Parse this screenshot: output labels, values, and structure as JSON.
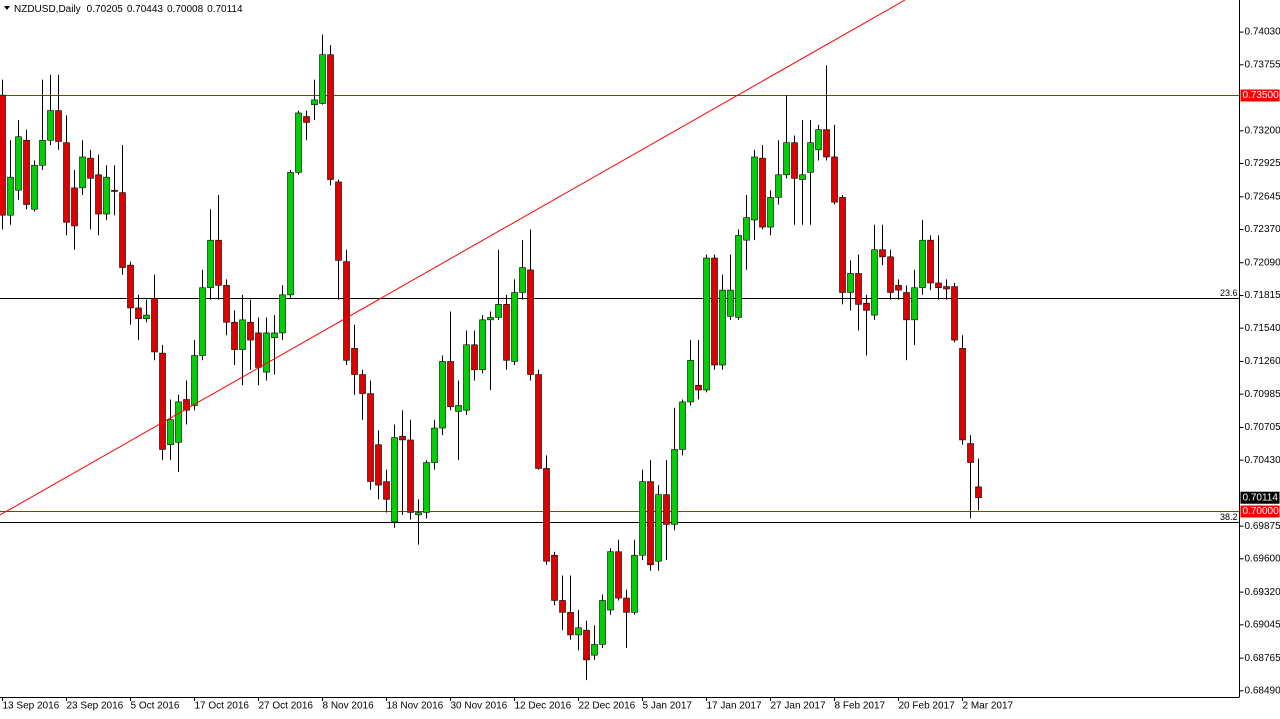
{
  "chart_data": {
    "type": "candlestick",
    "title": "NZDUSD,Daily",
    "up_color": "#00d000",
    "down_color": "#e00000",
    "categories": [
      "13 Sep 2016",
      null,
      null,
      null,
      null,
      null,
      null,
      null,
      "23 Sep 2016",
      null,
      null,
      null,
      null,
      null,
      null,
      null,
      "5 Oct 2016",
      null,
      null,
      null,
      null,
      null,
      null,
      null,
      "17 Oct 2016",
      null,
      null,
      null,
      null,
      null,
      null,
      null,
      "27 Oct 2016",
      null,
      null,
      null,
      null,
      null,
      null,
      null,
      "8 Nov 2016",
      null,
      null,
      null,
      null,
      null,
      null,
      null,
      "18 Nov 2016",
      null,
      null,
      null,
      null,
      null,
      null,
      null,
      "30 Nov 2016",
      null,
      null,
      null,
      null,
      null,
      null,
      null,
      "12 Dec 2016",
      null,
      null,
      null,
      null,
      null,
      null,
      null,
      "22 Dec 2016",
      null,
      null,
      null,
      null,
      null,
      null,
      null,
      "5 Jan 2017",
      null,
      null,
      null,
      null,
      null,
      null,
      null,
      "17 Jan 2017",
      null,
      null,
      null,
      null,
      null,
      null,
      null,
      "27 Jan 2017",
      null,
      null,
      null,
      null,
      null,
      null,
      null,
      "8 Feb 2017",
      null,
      null,
      null,
      null,
      null,
      null,
      null,
      "20 Feb 2017",
      null,
      null,
      null,
      null,
      null,
      null,
      null,
      "2 Mar 2017",
      null,
      null
    ],
    "open": [
      0.735,
      0.7249,
      0.727,
      0.7312,
      0.7254,
      0.7291,
      0.7312,
      0.7337,
      0.731,
      0.7272,
      0.7272,
      0.7297,
      0.7283,
      0.725,
      0.727,
      0.7268,
      0.7207,
      0.7171,
      0.7162,
      0.7179,
      0.7133,
      0.7056,
      0.7058,
      0.7094,
      0.7089,
      0.7131,
      0.7188,
      0.7228,
      0.719,
      0.7159,
      0.7136,
      0.7159,
      0.715,
      0.7117,
      0.7146,
      0.715,
      0.7182,
      0.7285,
      0.7332,
      0.7342,
      0.7343,
      0.7384,
      0.7277,
      0.721,
      0.7137,
      0.7115,
      0.7099,
      0.7056,
      0.7025,
      0.6991,
      0.7063,
      0.706,
      0.6997,
      0.6999,
      0.7041,
      0.707,
      0.7126,
      0.7084,
      0.7085,
      0.714,
      0.7119,
      0.7161,
      0.7163,
      0.7174,
      0.7126,
      0.7184,
      0.7203,
      0.7115,
      0.7036,
      0.6963,
      0.6925,
      0.6915,
      0.6896,
      0.69,
      0.6879,
      0.6888,
      0.6917,
      0.6966,
      0.6927,
      0.6915,
      0.6963,
      0.7025,
      0.6958,
      0.7014,
      0.6989,
      0.7052,
      0.7092,
      0.7106,
      0.7102,
      0.7213,
      0.7123,
      0.7164,
      0.7163,
      0.7228,
      0.7245,
      0.7297,
      0.7239,
      0.7264,
      0.7283,
      0.731,
      0.7279,
      0.7285,
      0.7304,
      0.7321,
      0.7298,
      0.7264,
      0.7184,
      0.72,
      0.7175,
      0.7165,
      0.722,
      0.7214,
      0.719,
      0.7184,
      0.7161,
      0.7188,
      0.7228,
      0.7192,
      0.7189,
      0.7189,
      0.7137,
      0.7057,
      0.70205
    ],
    "high": [
      0.7363,
      0.7312,
      0.7329,
      0.7321,
      0.7295,
      0.7363,
      0.7367,
      0.7367,
      0.7333,
      0.7287,
      0.7312,
      0.7304,
      0.73,
      0.7291,
      0.7291,
      0.7308,
      0.721,
      0.7182,
      0.7178,
      0.7199,
      0.714,
      0.7094,
      0.7098,
      0.711,
      0.7144,
      0.7203,
      0.7254,
      0.7266,
      0.7195,
      0.7169,
      0.7182,
      0.7178,
      0.7163,
      0.7163,
      0.7165,
      0.719,
      0.7287,
      0.7337,
      0.7337,
      0.7363,
      0.7401,
      0.7392,
      0.7279,
      0.722,
      0.7157,
      0.7119,
      0.711,
      0.7068,
      0.7035,
      0.7073,
      0.7085,
      0.7077,
      0.701,
      0.7043,
      0.7077,
      0.7131,
      0.7168,
      0.711,
      0.7152,
      0.7152,
      0.7165,
      0.7168,
      0.722,
      0.7182,
      0.7195,
      0.7228,
      0.7237,
      0.7119,
      0.7047,
      0.6966,
      0.6946,
      0.6946,
      0.6917,
      0.6908,
      0.6904,
      0.693,
      0.6969,
      0.6976,
      0.6934,
      0.6976,
      0.7035,
      0.7043,
      0.7022,
      0.7043,
      0.7087,
      0.7094,
      0.7144,
      0.7144,
      0.7216,
      0.7216,
      0.7199,
      0.7216,
      0.7237,
      0.7266,
      0.7304,
      0.7308,
      0.727,
      0.7312,
      0.735,
      0.7316,
      0.7329,
      0.7329,
      0.7325,
      0.7375,
      0.7325,
      0.7266,
      0.7211,
      0.7216,
      0.7182,
      0.7241,
      0.7241,
      0.722,
      0.7195,
      0.719,
      0.7203,
      0.7245,
      0.7232,
      0.7232,
      0.7195,
      0.7192,
      0.7148,
      0.7064,
      0.70443
    ],
    "low": [
      0.7237,
      0.7241,
      0.7262,
      0.7254,
      0.7252,
      0.7287,
      0.7308,
      0.7304,
      0.7232,
      0.722,
      0.7266,
      0.7237,
      0.7232,
      0.7245,
      0.7249,
      0.7199,
      0.7157,
      0.7144,
      0.7159,
      0.7127,
      0.7043,
      0.7043,
      0.7033,
      0.7073,
      0.7085,
      0.7127,
      0.7178,
      0.7178,
      0.7148,
      0.7123,
      0.7106,
      0.7119,
      0.7106,
      0.711,
      0.7115,
      0.7144,
      0.7179,
      0.7283,
      0.7312,
      0.7329,
      0.7342,
      0.7274,
      0.7178,
      0.7123,
      0.7098,
      0.7077,
      0.7018,
      0.701,
      0.6999,
      0.6986,
      0.6997,
      0.6993,
      0.6972,
      0.6994,
      0.7035,
      0.7064,
      0.7085,
      0.7043,
      0.7081,
      0.711,
      0.7116,
      0.7102,
      0.7161,
      0.7119,
      0.7123,
      0.7178,
      0.711,
      0.7035,
      0.6955,
      0.6921,
      0.69,
      0.6892,
      0.6883,
      0.6858,
      0.6875,
      0.6885,
      0.6913,
      0.6925,
      0.6885,
      0.6913,
      0.6959,
      0.695,
      0.695,
      0.6959,
      0.6984,
      0.7047,
      0.7089,
      0.7094,
      0.71,
      0.7119,
      0.7119,
      0.7161,
      0.7161,
      0.7203,
      0.7228,
      0.7237,
      0.7232,
      0.7258,
      0.728,
      0.7241,
      0.7241,
      0.7241,
      0.7295,
      0.7295,
      0.7258,
      0.7174,
      0.7169,
      0.7152,
      0.7131,
      0.7161,
      0.7207,
      0.7178,
      0.7178,
      0.7127,
      0.714,
      0.7182,
      0.7186,
      0.7178,
      0.7178,
      0.7142,
      0.7056,
      0.6994,
      0.70008
    ],
    "close": [
      0.7249,
      0.7281,
      0.7315,
      0.7258,
      0.7291,
      0.7312,
      0.7337,
      0.7311,
      0.7243,
      0.724,
      0.7298,
      0.728,
      0.725,
      0.7281,
      0.7269,
      0.7205,
      0.7171,
      0.7162,
      0.7165,
      0.7134,
      0.7052,
      0.7077,
      0.7092,
      0.7085,
      0.7131,
      0.7188,
      0.7228,
      0.719,
      0.7159,
      0.7136,
      0.7161,
      0.7144,
      0.7121,
      0.715,
      0.715,
      0.7182,
      0.7285,
      0.7335,
      0.7327,
      0.7346,
      0.7384,
      0.7279,
      0.7211,
      0.7127,
      0.7115,
      0.7099,
      0.7025,
      0.7022,
      0.701,
      0.7062,
      0.706,
      0.6999,
      0.6999,
      0.7041,
      0.707,
      0.7126,
      0.7088,
      0.7089,
      0.714,
      0.7119,
      0.7161,
      0.7163,
      0.7174,
      0.7127,
      0.7184,
      0.7205,
      0.7115,
      0.7036,
      0.6958,
      0.6925,
      0.6915,
      0.6896,
      0.6902,
      0.6875,
      0.6888,
      0.6925,
      0.6966,
      0.6927,
      0.6915,
      0.6963,
      0.7025,
      0.6955,
      0.7014,
      0.6989,
      0.7052,
      0.7092,
      0.7127,
      0.7102,
      0.7213,
      0.7123,
      0.7186,
      0.7186,
      0.7232,
      0.7247,
      0.7298,
      0.7239,
      0.7264,
      0.7283,
      0.731,
      0.728,
      0.7283,
      0.731,
      0.7321,
      0.7298,
      0.726,
      0.7184,
      0.72,
      0.7174,
      0.7169,
      0.722,
      0.7214,
      0.7184,
      0.7186,
      0.7161,
      0.7188,
      0.7228,
      0.7192,
      0.7188,
      0.7187,
      0.7144,
      0.706,
      0.7041,
      0.70114
    ],
    "ylim": [
      0.68438,
      0.743
    ],
    "yticks": [
      {
        "value": 0.7403,
        "label": "0.74030"
      },
      {
        "value": 0.73755,
        "label": "0.73755"
      },
      {
        "value": 0.732,
        "label": "0.73200"
      },
      {
        "value": 0.72925,
        "label": "0.72925"
      },
      {
        "value": 0.72645,
        "label": "0.72645"
      },
      {
        "value": 0.7237,
        "label": "0.72370"
      },
      {
        "value": 0.7209,
        "label": "0.72090"
      },
      {
        "value": 0.71815,
        "label": "0.71815"
      },
      {
        "value": 0.7154,
        "label": "0.71540"
      },
      {
        "value": 0.7126,
        "label": "0.71260"
      },
      {
        "value": 0.70985,
        "label": "0.70985"
      },
      {
        "value": 0.70705,
        "label": "0.70705"
      },
      {
        "value": 0.7043,
        "label": "0.70430"
      },
      {
        "value": 0.69875,
        "label": "0.69875"
      },
      {
        "value": 0.696,
        "label": "0.69600"
      },
      {
        "value": 0.6932,
        "label": "0.69320"
      },
      {
        "value": 0.69045,
        "label": "0.69045"
      },
      {
        "value": 0.68765,
        "label": "0.68765"
      },
      {
        "value": 0.6849,
        "label": "0.68490"
      }
    ],
    "price_levels": [
      {
        "value": 0.735,
        "label": "0.73500",
        "color": "#ff0000"
      },
      {
        "value": 0.7,
        "label": "0.70000",
        "color": "#ff0000"
      }
    ],
    "fib_levels": [
      {
        "value": 0.7179,
        "label": "23.6",
        "color": "#000000"
      },
      {
        "value": 0.6991,
        "label": "38.2",
        "color": "#000000"
      }
    ]
  }
}
